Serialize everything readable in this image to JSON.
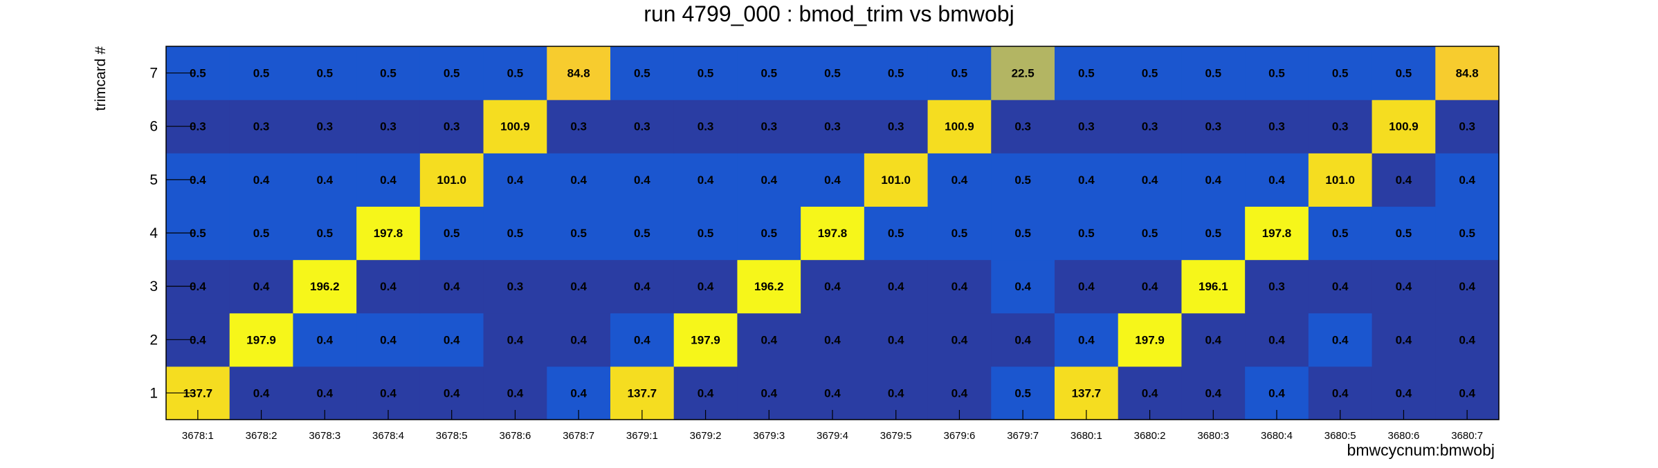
{
  "chart_data": {
    "type": "heatmap",
    "title": "run 4799_000 : bmod_trim vs bmwobj",
    "xlabel": "bmwcycnum:bmwobj",
    "ylabel": "trimcard #",
    "x_categories": [
      "3678:1",
      "3678:2",
      "3678:3",
      "3678:4",
      "3678:5",
      "3678:6",
      "3678:7",
      "3679:1",
      "3679:2",
      "3679:3",
      "3679:4",
      "3679:5",
      "3679:6",
      "3679:7",
      "3680:1",
      "3680:2",
      "3680:3",
      "3680:4",
      "3680:5",
      "3680:6",
      "3680:7"
    ],
    "y_categories": [
      "1",
      "2",
      "3",
      "4",
      "5",
      "6",
      "7"
    ],
    "values": [
      [
        "137.7",
        "0.4",
        "0.4",
        "0.4",
        "0.4",
        "0.4",
        "0.4",
        "137.7",
        "0.4",
        "0.4",
        "0.4",
        "0.4",
        "0.4",
        "0.5",
        "137.7",
        "0.4",
        "0.4",
        "0.4",
        "0.4",
        "0.4",
        "0.4"
      ],
      [
        "0.4",
        "197.9",
        "0.4",
        "0.4",
        "0.4",
        "0.4",
        "0.4",
        "0.4",
        "197.9",
        "0.4",
        "0.4",
        "0.4",
        "0.4",
        "0.4",
        "0.4",
        "197.9",
        "0.4",
        "0.4",
        "0.4",
        "0.4",
        "0.4"
      ],
      [
        "0.4",
        "0.4",
        "196.2",
        "0.4",
        "0.4",
        "0.3",
        "0.4",
        "0.4",
        "0.4",
        "196.2",
        "0.4",
        "0.4",
        "0.4",
        "0.4",
        "0.4",
        "0.4",
        "196.1",
        "0.3",
        "0.4",
        "0.4",
        "0.4"
      ],
      [
        "0.5",
        "0.5",
        "0.5",
        "197.8",
        "0.5",
        "0.5",
        "0.5",
        "0.5",
        "0.5",
        "0.5",
        "197.8",
        "0.5",
        "0.5",
        "0.5",
        "0.5",
        "0.5",
        "0.5",
        "197.8",
        "0.5",
        "0.5",
        "0.5"
      ],
      [
        "0.4",
        "0.4",
        "0.4",
        "0.4",
        "101.0",
        "0.4",
        "0.4",
        "0.4",
        "0.4",
        "0.4",
        "0.4",
        "101.0",
        "0.4",
        "0.5",
        "0.4",
        "0.4",
        "0.4",
        "0.4",
        "101.0",
        "0.4",
        "0.4"
      ],
      [
        "0.3",
        "0.3",
        "0.3",
        "0.3",
        "0.3",
        "100.9",
        "0.3",
        "0.3",
        "0.3",
        "0.3",
        "0.3",
        "0.3",
        "100.9",
        "0.3",
        "0.3",
        "0.3",
        "0.3",
        "0.3",
        "0.3",
        "100.9",
        "0.3"
      ],
      [
        "0.5",
        "0.5",
        "0.5",
        "0.5",
        "0.5",
        "0.5",
        "84.8",
        "0.5",
        "0.5",
        "0.5",
        "0.5",
        "0.5",
        "0.5",
        "22.5",
        "0.5",
        "0.5",
        "0.5",
        "0.5",
        "0.5",
        "0.5",
        "84.8"
      ]
    ],
    "cell_colors": [
      [
        "#f5dd20",
        "#2a3da3",
        "#2a3da3",
        "#2a3da3",
        "#2a3da3",
        "#2a3da3",
        "#1b56cf",
        "#f5dd20",
        "#2a3da3",
        "#2a3da3",
        "#2a3da3",
        "#2a3da3",
        "#2a3da3",
        "#1b56cf",
        "#f5dd20",
        "#2a3da3",
        "#2a3da3",
        "#1b56cf",
        "#2a3da3",
        "#2a3da3",
        "#2a3da3"
      ],
      [
        "#2a3da3",
        "#f6f61a",
        "#1b56cf",
        "#1b56cf",
        "#1b56cf",
        "#2a3da3",
        "#2a3da3",
        "#1b56cf",
        "#f6f61a",
        "#2a3da3",
        "#2a3da3",
        "#2a3da3",
        "#2a3da3",
        "#2a3da3",
        "#1b56cf",
        "#f6f61a",
        "#2a3da3",
        "#2a3da3",
        "#1b56cf",
        "#2a3da3",
        "#2a3da3"
      ],
      [
        "#2a3da3",
        "#2a3da3",
        "#f6f61a",
        "#2a3da3",
        "#2a3da3",
        "#2a3da3",
        "#2a3da3",
        "#2a3da3",
        "#2a3da3",
        "#f6f61a",
        "#2a3da3",
        "#2a3da3",
        "#2a3da3",
        "#1b56cf",
        "#2a3da3",
        "#2a3da3",
        "#f6f61a",
        "#2a3da3",
        "#2a3da3",
        "#2a3da3",
        "#2a3da3"
      ],
      [
        "#1b56cf",
        "#1b56cf",
        "#1b56cf",
        "#f6f61a",
        "#1b56cf",
        "#1b56cf",
        "#1b56cf",
        "#1b56cf",
        "#1b56cf",
        "#1b56cf",
        "#f6f61a",
        "#1b56cf",
        "#1b56cf",
        "#1b56cf",
        "#1b56cf",
        "#1b56cf",
        "#1b56cf",
        "#f6f61a",
        "#1b56cf",
        "#1b56cf",
        "#1b56cf"
      ],
      [
        "#1b56cf",
        "#1b56cf",
        "#1b56cf",
        "#1b56cf",
        "#f5dd20",
        "#1b56cf",
        "#1b56cf",
        "#1b56cf",
        "#1b56cf",
        "#1b56cf",
        "#1b56cf",
        "#f5dd20",
        "#1b56cf",
        "#1b56cf",
        "#1b56cf",
        "#1b56cf",
        "#1b56cf",
        "#1b56cf",
        "#f5dd20",
        "#2a3da3",
        "#1b56cf"
      ],
      [
        "#2a3da3",
        "#2a3da3",
        "#2a3da3",
        "#2a3da3",
        "#2a3da3",
        "#f5dd20",
        "#2a3da3",
        "#2a3da3",
        "#2a3da3",
        "#2a3da3",
        "#2a3da3",
        "#2a3da3",
        "#f5dd20",
        "#2a3da3",
        "#2a3da3",
        "#2a3da3",
        "#2a3da3",
        "#2a3da3",
        "#2a3da3",
        "#f5dd20",
        "#2a3da3"
      ],
      [
        "#1b56cf",
        "#1b56cf",
        "#1b56cf",
        "#1b56cf",
        "#1b56cf",
        "#1b56cf",
        "#f7cc2e",
        "#1b56cf",
        "#1b56cf",
        "#1b56cf",
        "#1b56cf",
        "#1b56cf",
        "#1b56cf",
        "#b3b563",
        "#1b56cf",
        "#1b56cf",
        "#1b56cf",
        "#1b56cf",
        "#1b56cf",
        "#1b56cf",
        "#f7cc2e"
      ]
    ],
    "grid": false,
    "legend": "none"
  }
}
